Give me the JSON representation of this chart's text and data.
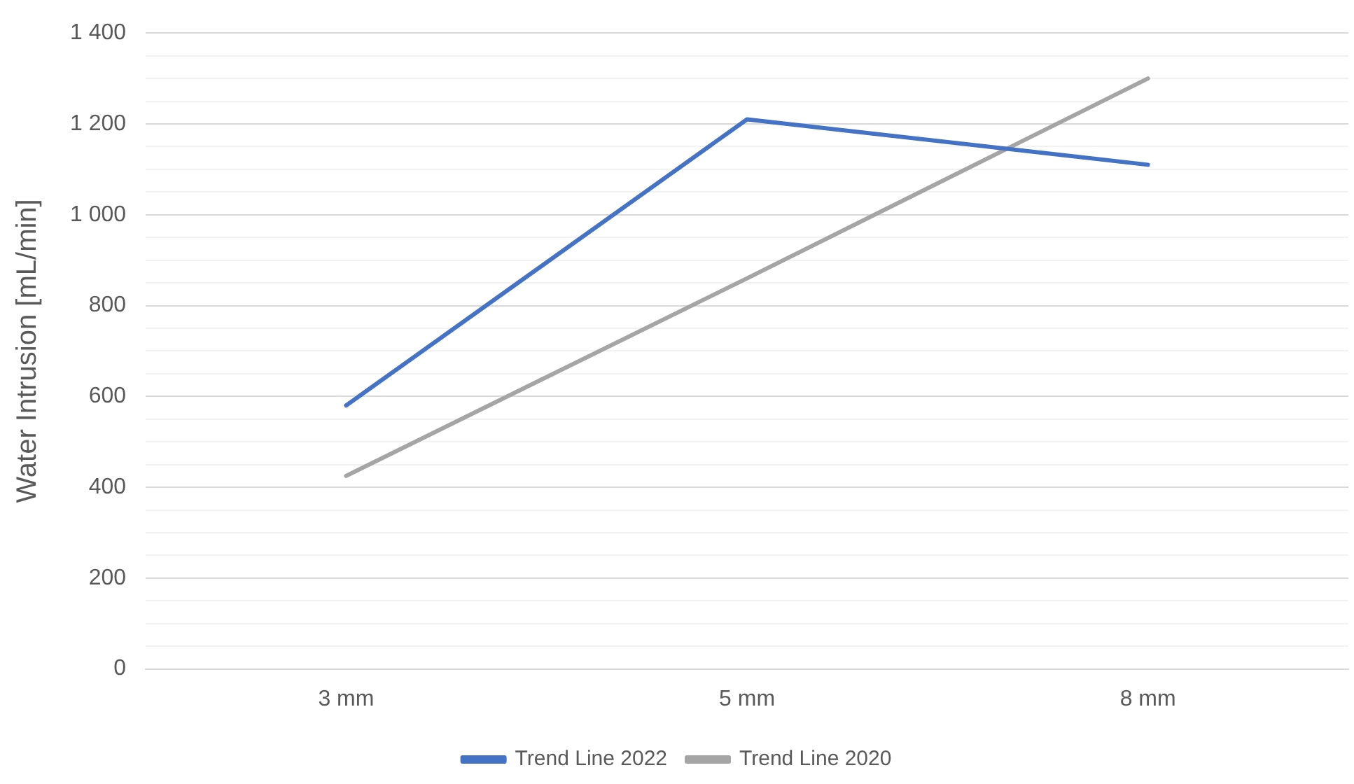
{
  "chart_data": {
    "type": "line",
    "ylabel": "Water Intrusion [mL/min]",
    "categories": [
      "3 mm",
      "5 mm",
      "8 mm"
    ],
    "series": [
      {
        "name": "Trend Line 2022",
        "color": "#4472c4",
        "values": [
          580,
          1210,
          1110
        ]
      },
      {
        "name": "Trend Line 2020",
        "color": "#a5a5a5",
        "values": [
          425,
          860,
          1300
        ]
      }
    ],
    "ylim": [
      0,
      1400
    ],
    "yticks": [
      0,
      {
        "value": 50,
        "label": null
      },
      {
        "value": 100,
        "label": null
      },
      {
        "value": 150,
        "label": null
      },
      200,
      {
        "value": 250,
        "label": null
      },
      {
        "value": 300,
        "label": null
      },
      {
        "value": 350,
        "label": null
      },
      400,
      {
        "value": 450,
        "label": null
      },
      {
        "value": 500,
        "label": null
      },
      {
        "value": 550,
        "label": null
      },
      600,
      {
        "value": 650,
        "label": null
      },
      {
        "value": 700,
        "label": null
      },
      {
        "value": 750,
        "label": null
      },
      800,
      {
        "value": 850,
        "label": null
      },
      {
        "value": 900,
        "label": null
      },
      {
        "value": 950,
        "label": null
      },
      {
        "value": 1000,
        "label": "1 000"
      },
      {
        "value": 1050,
        "label": null
      },
      {
        "value": 1100,
        "label": null
      },
      {
        "value": 1150,
        "label": null
      },
      {
        "value": 1200,
        "label": "1 200"
      },
      {
        "value": 1250,
        "label": null
      },
      {
        "value": 1300,
        "label": null
      },
      {
        "value": 1350,
        "label": null
      },
      {
        "value": 1400,
        "label": "1 400"
      }
    ],
    "grid": "y",
    "legend": "bottom",
    "marker": "none",
    "line_style": "solid"
  }
}
